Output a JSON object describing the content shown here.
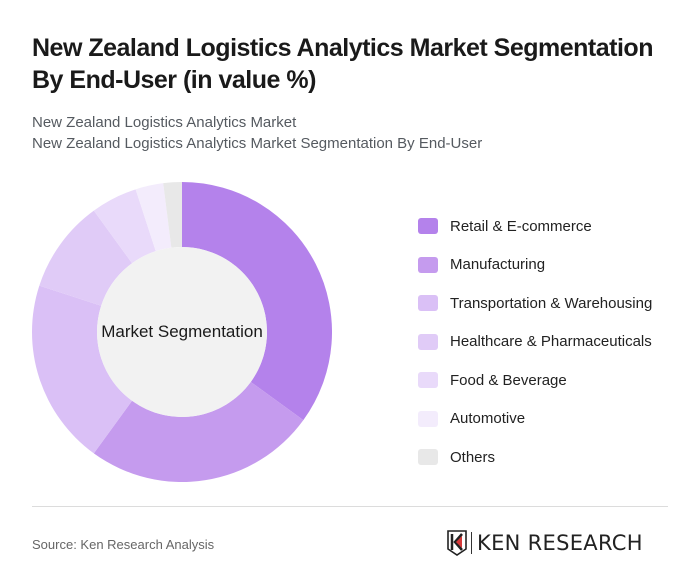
{
  "header": {
    "title": "New Zealand Logistics Analytics Market Segmentation By End-User (in value %)",
    "subtitle_1": "New Zealand Logistics Analytics Market",
    "subtitle_2": "New Zealand Logistics Analytics Market Segmentation By End-User"
  },
  "chart": {
    "center_label": "Market Segmentation"
  },
  "legend": {
    "items": [
      {
        "label": "Retail & E-commerce",
        "color": "#b482eb"
      },
      {
        "label": "Manufacturing",
        "color": "#c59bee"
      },
      {
        "label": "Transportation & Warehousing",
        "color": "#dac0f6"
      },
      {
        "label": "Healthcare & Pharmaceuticals",
        "color": "#e0cbf7"
      },
      {
        "label": "Food & Beverage",
        "color": "#e9dafa"
      },
      {
        "label": "Automotive",
        "color": "#f3ecfc"
      },
      {
        "label": "Others",
        "color": "#e8e8e8"
      }
    ]
  },
  "footer": {
    "source": "Source: Ken Research Analysis",
    "logo_text": "KEN RESEARCH"
  },
  "chart_data": {
    "type": "pie",
    "title": "New Zealand Logistics Analytics Market Segmentation By End-User (in value %)",
    "subtitle": "New Zealand Logistics Analytics Market Segmentation By End-User",
    "center_label": "Market Segmentation",
    "categories": [
      "Retail & E-commerce",
      "Manufacturing",
      "Transportation & Warehousing",
      "Healthcare & Pharmaceuticals",
      "Food & Beverage",
      "Automotive",
      "Others"
    ],
    "values": [
      35,
      25,
      20,
      10,
      5,
      3,
      2
    ],
    "colors": [
      "#b482eb",
      "#c59bee",
      "#dac0f6",
      "#e0cbf7",
      "#e9dafa",
      "#f3ecfc",
      "#e8e8e8"
    ],
    "donut": true,
    "legend_position": "right"
  }
}
